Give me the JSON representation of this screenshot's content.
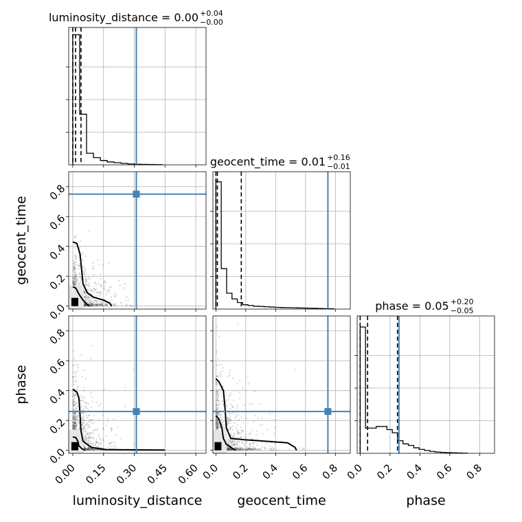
{
  "chart_data": {
    "type": "corner",
    "parameters": [
      "luminosity_distance",
      "geocent_time",
      "phase"
    ],
    "truths": {
      "luminosity_distance": 0.31,
      "geocent_time": 0.75,
      "phase": 0.26
    },
    "colors": {
      "truth": "#4682b4",
      "hist": "#000000",
      "grid": "#b0b0b0",
      "points": "#555555"
    },
    "titles": [
      {
        "param": "luminosity_distance",
        "prefix": "luminosity_distance = ",
        "median": "0.00",
        "plus": "+0.04",
        "minus": "−0.00"
      },
      {
        "param": "geocent_time",
        "prefix": "geocent_time = ",
        "median": "0.01",
        "plus": "+0.16",
        "minus": "−0.01"
      },
      {
        "param": "phase",
        "prefix": "phase = ",
        "median": "0.05",
        "plus": "+0.20",
        "minus": "−0.05"
      }
    ],
    "axes": {
      "luminosity_distance": {
        "label": "luminosity_distance",
        "range": [
          -0.02,
          0.65
        ],
        "ticks": [
          0.0,
          0.15,
          0.3,
          0.45,
          0.6
        ],
        "tick_labels": [
          "0.00",
          "0.15",
          "0.30",
          "0.45",
          "0.60"
        ]
      },
      "geocent_time": {
        "label": "geocent_time",
        "range": [
          -0.02,
          0.9
        ],
        "ticks": [
          0.0,
          0.2,
          0.4,
          0.6,
          0.8
        ],
        "tick_labels": [
          "0.0",
          "0.2",
          "0.4",
          "0.6",
          "0.8"
        ]
      },
      "phase": {
        "label": "phase",
        "range": [
          -0.02,
          0.9
        ],
        "ticks": [
          0.0,
          0.2,
          0.4,
          0.6,
          0.8
        ],
        "tick_labels": [
          "0.0",
          "0.2",
          "0.4",
          "0.6",
          "0.8"
        ]
      }
    },
    "histograms": {
      "luminosity_distance": {
        "edges": [
          0.0,
          0.0336,
          0.0672,
          0.1008,
          0.1344,
          0.168,
          0.2016,
          0.2352,
          0.2688,
          0.3024,
          0.336,
          0.3696,
          0.4032,
          0.4368
        ],
        "counts": [
          0.9,
          0.35,
          0.08,
          0.05,
          0.03,
          0.02,
          0.015,
          0.01,
          0.006,
          0.004,
          0.003,
          0.002,
          0.001
        ],
        "ymax": 0.95,
        "quantiles": [
          0.0,
          0.0,
          0.04
        ]
      },
      "geocent_time": {
        "edges": [
          0.0,
          0.0359,
          0.0718,
          0.1077,
          0.1436,
          0.1795,
          0.2154,
          0.2513,
          0.2872,
          0.3231,
          0.359,
          0.3949,
          0.4308,
          0.4667,
          0.5026,
          0.5385,
          0.5744,
          0.6103,
          0.6462,
          0.6821,
          0.718,
          0.7539,
          0.7898
        ],
        "counts": [
          0.88,
          0.28,
          0.11,
          0.07,
          0.045,
          0.03,
          0.025,
          0.02,
          0.018,
          0.016,
          0.014,
          0.012,
          0.011,
          0.01,
          0.009,
          0.008,
          0.007,
          0.006,
          0.005,
          0.004,
          0.003,
          0.002
        ],
        "ymax": 0.95,
        "quantiles": [
          0.0,
          0.01,
          0.17
        ]
      },
      "phase": {
        "edges": [
          0.0,
          0.0359,
          0.0718,
          0.1077,
          0.1436,
          0.1795,
          0.2154,
          0.2513,
          0.2872,
          0.3231,
          0.359,
          0.3949,
          0.4308,
          0.4667,
          0.5026,
          0.5385,
          0.5744,
          0.6103,
          0.6462,
          0.6821,
          0.718
        ],
        "counts": [
          0.8,
          0.16,
          0.16,
          0.17,
          0.17,
          0.15,
          0.13,
          0.08,
          0.06,
          0.05,
          0.035,
          0.025,
          0.018,
          0.012,
          0.008,
          0.006,
          0.004,
          0.003,
          0.002,
          0.001
        ],
        "ymax": 0.87,
        "quantiles": [
          0.0,
          0.05,
          0.25
        ]
      }
    }
  }
}
